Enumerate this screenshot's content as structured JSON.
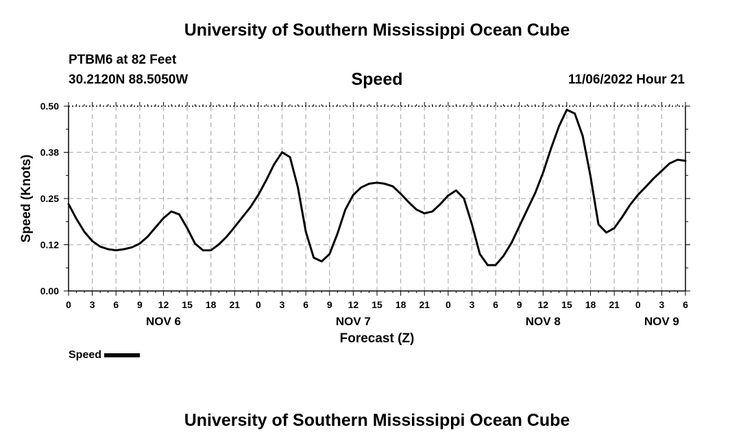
{
  "header": {
    "title": "University of Southern Mississippi Ocean Cube",
    "station": "PTBM6 at 82 Feet",
    "coords": "30.2120N  88.5050W",
    "datetime": "11/06/2022 Hour 21"
  },
  "footer": {
    "title": "University of Southern Mississippi Ocean Cube"
  },
  "chart_data": {
    "type": "line",
    "title": "Speed",
    "xlabel": "Forecast (Z)",
    "ylabel": "Speed (Knots)",
    "xlim": [
      0,
      78
    ],
    "ylim": [
      0,
      0.5
    ],
    "y_ticks": [
      0.0,
      0.125,
      0.25,
      0.375,
      0.5
    ],
    "y_tick_labels": [
      "0.00",
      "0.12",
      "0.25",
      "0.38",
      "0.50"
    ],
    "x_tick_labels": [
      "0",
      "3",
      "6",
      "9",
      "12",
      "15",
      "18",
      "21",
      "0",
      "3",
      "6",
      "9",
      "12",
      "15",
      "18",
      "21",
      "0",
      "3",
      "6",
      "9",
      "12",
      "15",
      "18",
      "21",
      "0",
      "3",
      "6"
    ],
    "day_labels": [
      {
        "label": "NOV 6",
        "hour": 12
      },
      {
        "label": "NOV 7",
        "hour": 36
      },
      {
        "label": "NOV 8",
        "hour": 60
      },
      {
        "label": "NOV 9",
        "hour": 75
      }
    ],
    "grid": true,
    "legend": {
      "label": "Speed",
      "placement": "bottom-left"
    },
    "series": [
      {
        "name": "Speed",
        "x": [
          0,
          1,
          2,
          3,
          4,
          5,
          6,
          7,
          8,
          9,
          10,
          11,
          12,
          13,
          14,
          15,
          16,
          17,
          18,
          19,
          20,
          21,
          22,
          23,
          24,
          25,
          26,
          27,
          28,
          29,
          30,
          31,
          32,
          33,
          34,
          35,
          36,
          37,
          38,
          39,
          40,
          41,
          42,
          43,
          44,
          45,
          46,
          47,
          48,
          49,
          50,
          51,
          52,
          53,
          54,
          55,
          56,
          57,
          58,
          59,
          60,
          61,
          62,
          63,
          64,
          65,
          66,
          67,
          68,
          69,
          70,
          71,
          72,
          73,
          74,
          75,
          76,
          77,
          78
        ],
        "values": [
          0.235,
          0.195,
          0.16,
          0.135,
          0.12,
          0.113,
          0.11,
          0.113,
          0.118,
          0.128,
          0.147,
          0.172,
          0.197,
          0.215,
          0.207,
          0.17,
          0.128,
          0.11,
          0.11,
          0.126,
          0.147,
          0.173,
          0.2,
          0.227,
          0.26,
          0.3,
          0.343,
          0.375,
          0.362,
          0.28,
          0.16,
          0.09,
          0.08,
          0.1,
          0.155,
          0.22,
          0.26,
          0.28,
          0.29,
          0.293,
          0.29,
          0.283,
          0.263,
          0.24,
          0.22,
          0.21,
          0.215,
          0.235,
          0.258,
          0.272,
          0.25,
          0.18,
          0.1,
          0.07,
          0.07,
          0.095,
          0.13,
          0.175,
          0.22,
          0.265,
          0.32,
          0.385,
          0.445,
          0.49,
          0.48,
          0.42,
          0.31,
          0.18,
          0.158,
          0.17,
          0.2,
          0.233,
          0.26,
          0.282,
          0.305,
          0.325,
          0.345,
          0.355,
          0.352
        ]
      }
    ]
  }
}
